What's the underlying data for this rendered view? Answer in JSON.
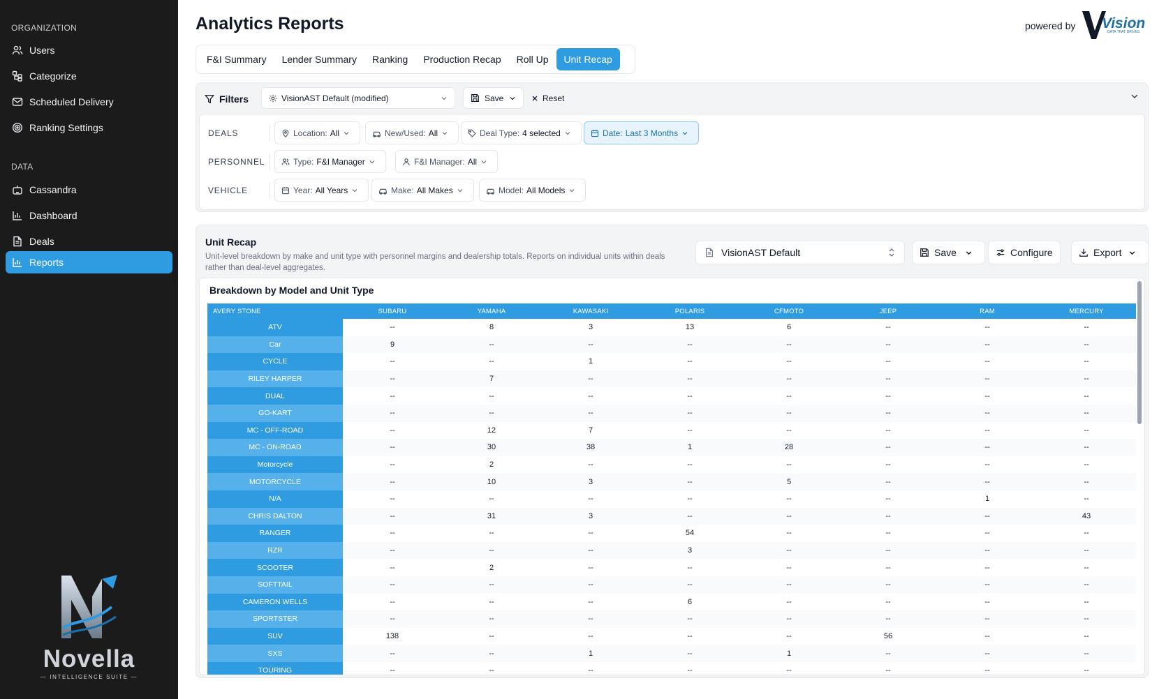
{
  "sidebar": {
    "section_org": "ORGANIZATION",
    "section_data": "DATA",
    "org_items": [
      {
        "label": "Users",
        "icon": "users-icon"
      },
      {
        "label": "Categorize",
        "icon": "categorize-icon"
      },
      {
        "label": "Scheduled Delivery",
        "icon": "mail-icon"
      },
      {
        "label": "Ranking Settings",
        "icon": "target-icon"
      }
    ],
    "data_items": [
      {
        "label": "Cassandra",
        "icon": "cassandra-icon"
      },
      {
        "label": "Dashboard",
        "icon": "bar-chart-icon"
      },
      {
        "label": "Deals",
        "icon": "document-icon"
      },
      {
        "label": "Reports",
        "icon": "line-chart-icon",
        "active": true
      }
    ],
    "logo": {
      "name": "Novella",
      "subtitle": "— INTELLIGENCE SUITE —"
    }
  },
  "header": {
    "title": "Analytics Reports",
    "powered_by": "powered by",
    "vision_logo": "Vision",
    "vision_tagline": "DATA THAT DRIVES"
  },
  "tabs": [
    {
      "label": "F&I Summary"
    },
    {
      "label": "Lender Summary"
    },
    {
      "label": "Ranking"
    },
    {
      "label": "Production Recap"
    },
    {
      "label": "Roll Up"
    },
    {
      "label": "Unit Recap",
      "active": true
    }
  ],
  "filters": {
    "label": "Filters",
    "preset": "VisionAST Default (modified)",
    "save": "Save",
    "reset": "Reset",
    "rows": {
      "deals": "DEALS",
      "personnel": "PERSONNEL",
      "vehicle": "VEHICLE"
    },
    "chips": {
      "location": {
        "label": "Location:",
        "value": "All"
      },
      "new_used": {
        "label": "New/Used:",
        "value": "All"
      },
      "deal_type": {
        "label": "Deal Type:",
        "value": "4 selected"
      },
      "date": {
        "label": "Date:",
        "value": "Last 3 Months"
      },
      "type": {
        "label": "Type:",
        "value": "F&I Manager"
      },
      "fi_manager": {
        "label": "F&I Manager:",
        "value": "All"
      },
      "year": {
        "label": "Year:",
        "value": "All Years"
      },
      "make": {
        "label": "Make:",
        "value": "All Makes"
      },
      "model": {
        "label": "Model:",
        "value": "All Models"
      }
    }
  },
  "report": {
    "title": "Unit Recap",
    "description": "Unit-level breakdown by make and unit type with personnel margins and dealership totals. Reports on individual units within deals rather than deal-level aggregates.",
    "preset": "VisionAST Default",
    "save": "Save",
    "configure": "Configure",
    "export": "Export",
    "table_title": "Breakdown by Model and Unit Type",
    "columns": [
      "AVERY STONE",
      "SUBARU",
      "YAMAHA",
      "KAWASAKI",
      "POLARIS",
      "CFMOTO",
      "JEEP",
      "RAM",
      "MERCURY"
    ],
    "rows": [
      [
        "ATV",
        "--",
        "8",
        "3",
        "13",
        "6",
        "--",
        "--",
        "--"
      ],
      [
        "Car",
        "9",
        "--",
        "--",
        "--",
        "--",
        "--",
        "--",
        "--"
      ],
      [
        "CYCLE",
        "--",
        "--",
        "1",
        "--",
        "--",
        "--",
        "--",
        "--"
      ],
      [
        "RILEY HARPER",
        "--",
        "7",
        "--",
        "--",
        "--",
        "--",
        "--",
        "--"
      ],
      [
        "DUAL",
        "--",
        "--",
        "--",
        "--",
        "--",
        "--",
        "--",
        "--"
      ],
      [
        "GO-KART",
        "--",
        "--",
        "--",
        "--",
        "--",
        "--",
        "--",
        "--"
      ],
      [
        "MC - OFF-ROAD",
        "--",
        "12",
        "7",
        "--",
        "--",
        "--",
        "--",
        "--"
      ],
      [
        "MC - ON-ROAD",
        "--",
        "30",
        "38",
        "1",
        "28",
        "--",
        "--",
        "--"
      ],
      [
        "Motorcycle",
        "--",
        "2",
        "--",
        "--",
        "--",
        "--",
        "--",
        "--"
      ],
      [
        "MOTORCYCLE",
        "--",
        "10",
        "3",
        "--",
        "5",
        "--",
        "--",
        "--"
      ],
      [
        "N/A",
        "--",
        "--",
        "--",
        "--",
        "--",
        "--",
        "1",
        "--"
      ],
      [
        "CHRIS DALTON",
        "--",
        "31",
        "3",
        "--",
        "--",
        "--",
        "--",
        "43"
      ],
      [
        "RANGER",
        "--",
        "--",
        "--",
        "54",
        "--",
        "--",
        "--",
        "--"
      ],
      [
        "RZR",
        "--",
        "--",
        "--",
        "3",
        "--",
        "--",
        "--",
        "--"
      ],
      [
        "SCOOTER",
        "--",
        "2",
        "--",
        "--",
        "--",
        "--",
        "--",
        "--"
      ],
      [
        "SOFTTAIL",
        "--",
        "--",
        "--",
        "--",
        "--",
        "--",
        "--",
        "--"
      ],
      [
        "CAMERON WELLS",
        "--",
        "--",
        "--",
        "6",
        "--",
        "--",
        "--",
        "--"
      ],
      [
        "SPORTSTER",
        "--",
        "--",
        "--",
        "--",
        "--",
        "--",
        "--",
        "--"
      ],
      [
        "SUV",
        "138",
        "--",
        "--",
        "--",
        "--",
        "56",
        "--",
        "--"
      ],
      [
        "SXS",
        "--",
        "--",
        "1",
        "--",
        "1",
        "--",
        "--",
        "--"
      ],
      [
        "TOURING",
        "--",
        "--",
        "--",
        "--",
        "--",
        "--",
        "--",
        "--"
      ]
    ]
  },
  "colors": {
    "accent": "#2f9be0",
    "sidebar_bg": "#1b1b1b",
    "rowhead_alt": "#56b1ea"
  }
}
